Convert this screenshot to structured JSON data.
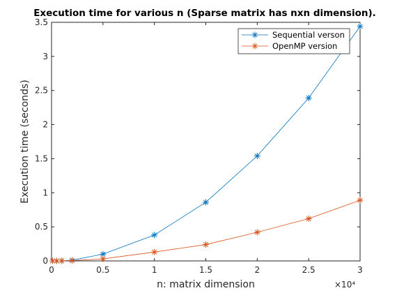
{
  "chart_data": {
    "type": "line",
    "title": "Execution time for various n (Sparse matrix has nxn dimension).",
    "xlabel": "n: matrix dimension",
    "ylabel": "Execution time (seconds)",
    "xlim": [
      0,
      30000
    ],
    "ylim": [
      0,
      3.5
    ],
    "x_ticks": [
      0,
      5000,
      10000,
      15000,
      20000,
      25000,
      30000
    ],
    "x_tick_labels": [
      "0",
      "0.5",
      "1",
      "1.5",
      "2",
      "2.5",
      "3"
    ],
    "x_exponent_label": "×10⁴",
    "y_ticks": [
      0,
      0.5,
      1,
      1.5,
      2,
      2.5,
      3,
      3.5
    ],
    "y_tick_labels": [
      "0",
      "0.5",
      "1",
      "1.5",
      "2",
      "2.5",
      "3",
      "3.5"
    ],
    "grid": false,
    "legend_position": "top-right",
    "x": [
      100,
      500,
      1000,
      2000,
      5000,
      10000,
      15000,
      20000,
      25000,
      30000
    ],
    "series": [
      {
        "name": "Sequential verson",
        "color": "#0072BD",
        "marker": "asterisk",
        "values": [
          0.0,
          0.0,
          0.001,
          0.01,
          0.1,
          0.38,
          0.86,
          1.54,
          2.39,
          3.44
        ]
      },
      {
        "name": "OpenMP version",
        "color": "#D95319",
        "marker": "asterisk",
        "values": [
          0.0,
          0.0,
          0.001,
          0.005,
          0.03,
          0.13,
          0.24,
          0.42,
          0.62,
          0.89
        ]
      }
    ]
  }
}
